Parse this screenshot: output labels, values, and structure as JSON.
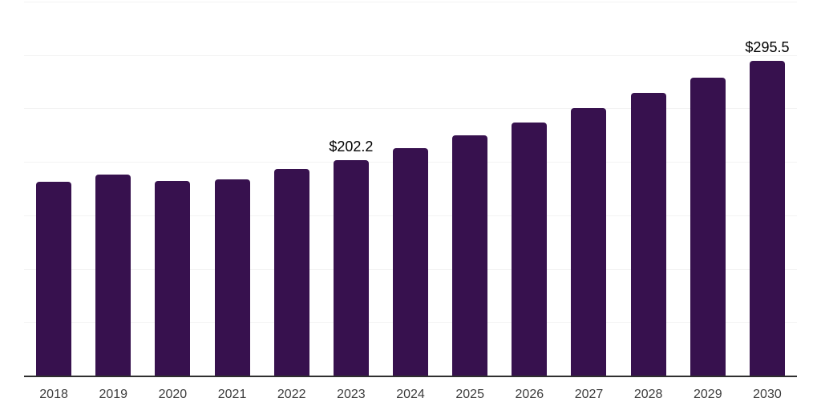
{
  "chart_data": {
    "type": "bar",
    "title": "",
    "xlabel": "",
    "ylabel": "",
    "categories": [
      "2018",
      "2019",
      "2020",
      "2021",
      "2022",
      "2023",
      "2024",
      "2025",
      "2026",
      "2027",
      "2028",
      "2029",
      "2030"
    ],
    "values": [
      182.1,
      188.9,
      182.9,
      184.7,
      194.1,
      202.2,
      213.5,
      225.3,
      237.9,
      251.1,
      265.1,
      279.9,
      295.5
    ],
    "labeled_points": [
      {
        "category": "2023",
        "label": "$202.2"
      },
      {
        "category": "2030",
        "label": "$295.5"
      }
    ],
    "value_prefix": "$",
    "ylim": [
      0,
      350
    ],
    "gridline_step": 50,
    "grid": true,
    "legend_position": "none",
    "colors": {
      "bar": "#37114E",
      "gridline": "#F3F3F3",
      "axis_line": "#2F2F2F",
      "tick_label": "#3D3D3D",
      "data_label": "#000000",
      "background": "#FFFFFF"
    }
  }
}
